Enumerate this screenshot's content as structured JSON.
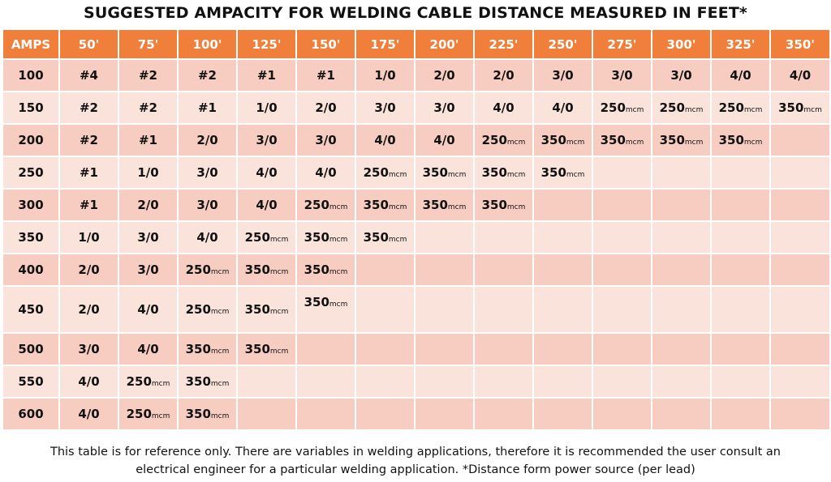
{
  "title": "SUGGESTED AMPACITY FOR WELDING CABLE DISTANCE MEASURED IN FEET*",
  "header": [
    "AMPS",
    "50'",
    "75'",
    "100'",
    "125'",
    "150'",
    "175'",
    "200'",
    "225'",
    "250'",
    "275'",
    "300'",
    "325'",
    "350'"
  ],
  "rows": [
    {
      "amps": "100",
      "cells": [
        [
          "#4",
          ""
        ],
        [
          "#2",
          ""
        ],
        [
          "#2",
          ""
        ],
        [
          "#1",
          ""
        ],
        [
          "#1",
          ""
        ],
        [
          "1/0",
          ""
        ],
        [
          "2/0",
          ""
        ],
        [
          "2/0",
          ""
        ],
        [
          "3/0",
          ""
        ],
        [
          "3/0",
          ""
        ],
        [
          "3/0",
          ""
        ],
        [
          "4/0",
          ""
        ],
        [
          "4/0",
          ""
        ]
      ]
    },
    {
      "amps": "150",
      "cells": [
        [
          "#2",
          ""
        ],
        [
          "#2",
          ""
        ],
        [
          "#1",
          ""
        ],
        [
          "1/0",
          ""
        ],
        [
          "2/0",
          ""
        ],
        [
          "3/0",
          ""
        ],
        [
          "3/0",
          ""
        ],
        [
          "4/0",
          ""
        ],
        [
          "4/0",
          ""
        ],
        [
          "250",
          "mcm"
        ],
        [
          "250",
          "mcm"
        ],
        [
          "250",
          "mcm"
        ],
        [
          "350",
          "mcm"
        ]
      ]
    },
    {
      "amps": "200",
      "cells": [
        [
          "#2",
          ""
        ],
        [
          "#1",
          ""
        ],
        [
          "2/0",
          ""
        ],
        [
          "3/0",
          ""
        ],
        [
          "3/0",
          ""
        ],
        [
          "4/0",
          ""
        ],
        [
          "4/0",
          ""
        ],
        [
          "250",
          "mcm"
        ],
        [
          "350",
          "mcm"
        ],
        [
          "350",
          "mcm"
        ],
        [
          "350",
          "mcm"
        ],
        [
          "350",
          "mcm"
        ],
        [
          "",
          ""
        ]
      ]
    },
    {
      "amps": "250",
      "cells": [
        [
          "#1",
          ""
        ],
        [
          "1/0",
          ""
        ],
        [
          "3/0",
          ""
        ],
        [
          "4/0",
          ""
        ],
        [
          "4/0",
          ""
        ],
        [
          "250",
          "mcm"
        ],
        [
          "350",
          "mcm"
        ],
        [
          "350",
          "mcm"
        ],
        [
          "350",
          "mcm"
        ],
        [
          "",
          ""
        ],
        [
          "",
          ""
        ],
        [
          "",
          ""
        ],
        [
          "",
          ""
        ]
      ]
    },
    {
      "amps": "300",
      "cells": [
        [
          "#1",
          ""
        ],
        [
          "2/0",
          ""
        ],
        [
          "3/0",
          ""
        ],
        [
          "4/0",
          ""
        ],
        [
          "250",
          "mcm"
        ],
        [
          "350",
          "mcm"
        ],
        [
          "350",
          "mcm"
        ],
        [
          "350",
          "mcm"
        ],
        [
          "",
          ""
        ],
        [
          "",
          ""
        ],
        [
          "",
          ""
        ],
        [
          "",
          ""
        ],
        [
          "",
          ""
        ]
      ]
    },
    {
      "amps": "350",
      "cells": [
        [
          "1/0",
          ""
        ],
        [
          "3/0",
          ""
        ],
        [
          "4/0",
          ""
        ],
        [
          "250",
          "mcm"
        ],
        [
          "350",
          "mcm"
        ],
        [
          "350",
          "mcm"
        ],
        [
          "",
          ""
        ],
        [
          "",
          ""
        ],
        [
          "",
          ""
        ],
        [
          "",
          ""
        ],
        [
          "",
          ""
        ],
        [
          "",
          ""
        ],
        [
          "",
          ""
        ]
      ]
    },
    {
      "amps": "400",
      "cells": [
        [
          "2/0",
          ""
        ],
        [
          "3/0",
          ""
        ],
        [
          "250",
          "mcm"
        ],
        [
          "350",
          "mcm"
        ],
        [
          "350",
          "mcm"
        ],
        [
          "",
          ""
        ],
        [
          "",
          ""
        ],
        [
          "",
          ""
        ],
        [
          "",
          ""
        ],
        [
          "",
          ""
        ],
        [
          "",
          ""
        ],
        [
          "",
          ""
        ],
        [
          "",
          ""
        ]
      ]
    },
    {
      "amps": "450",
      "cells": [
        [
          "2/0",
          ""
        ],
        [
          "4/0",
          ""
        ],
        [
          "250",
          "mcm"
        ],
        [
          "350",
          "mcm"
        ],
        [
          "350",
          "mcm"
        ],
        [
          "",
          ""
        ],
        [
          "",
          ""
        ],
        [
          "",
          ""
        ],
        [
          "",
          ""
        ],
        [
          "",
          ""
        ],
        [
          "",
          ""
        ],
        [
          "",
          ""
        ],
        [
          "",
          ""
        ]
      ]
    },
    {
      "amps": "500",
      "cells": [
        [
          "3/0",
          ""
        ],
        [
          "4/0",
          ""
        ],
        [
          "350",
          "mcm"
        ],
        [
          "350",
          "mcm"
        ],
        [
          "",
          ""
        ],
        [
          "",
          ""
        ],
        [
          "",
          ""
        ],
        [
          "",
          ""
        ],
        [
          "",
          ""
        ],
        [
          "",
          ""
        ],
        [
          "",
          ""
        ],
        [
          "",
          ""
        ],
        [
          "",
          ""
        ]
      ]
    },
    {
      "amps": "550",
      "cells": [
        [
          "4/0",
          ""
        ],
        [
          "250",
          "mcm"
        ],
        [
          "350",
          "mcm"
        ],
        [
          "",
          ""
        ],
        [
          "",
          ""
        ],
        [
          "",
          ""
        ],
        [
          "",
          ""
        ],
        [
          "",
          ""
        ],
        [
          "",
          ""
        ],
        [
          "",
          ""
        ],
        [
          "",
          ""
        ],
        [
          "",
          ""
        ],
        [
          "",
          ""
        ]
      ]
    },
    {
      "amps": "600",
      "cells": [
        [
          "4/0",
          ""
        ],
        [
          "250",
          "mcm"
        ],
        [
          "350",
          "mcm"
        ],
        [
          "",
          ""
        ],
        [
          "",
          ""
        ],
        [
          "",
          ""
        ],
        [
          "",
          ""
        ],
        [
          "",
          ""
        ],
        [
          "",
          ""
        ],
        [
          "",
          ""
        ],
        [
          "",
          ""
        ],
        [
          "",
          ""
        ],
        [
          "",
          ""
        ]
      ]
    }
  ],
  "footer": {
    "line1": "This table is for reference only. There are variables in welding applications, therefore it is recommended the user consult an",
    "line2": "electrical engineer for a particular welding application. *Distance form power source (per lead)"
  }
}
